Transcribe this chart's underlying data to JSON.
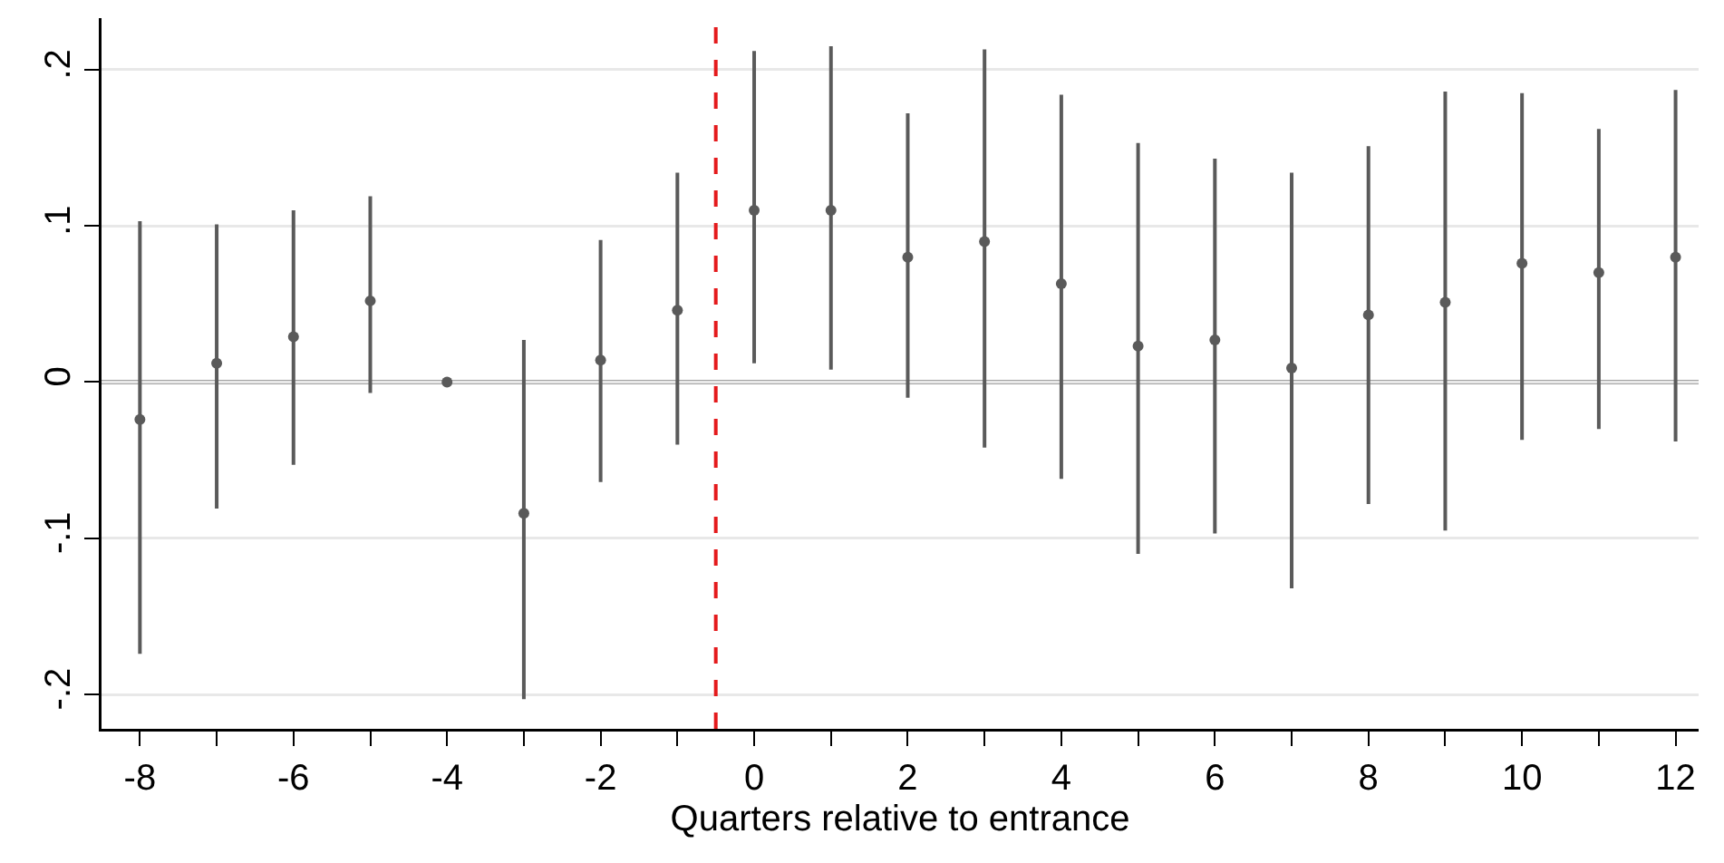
{
  "chart_data": {
    "type": "scatter",
    "xlabel": "Quarters relative to entrance",
    "x": [
      -8,
      -7,
      -6,
      -5,
      -4,
      -3,
      -2,
      -1,
      0,
      1,
      2,
      3,
      4,
      5,
      6,
      7,
      8,
      9,
      10,
      11,
      12
    ],
    "values": [
      -0.024,
      0.012,
      0.029,
      0.052,
      0,
      -0.084,
      0.014,
      0.046,
      0.11,
      0.11,
      0.08,
      0.09,
      0.063,
      0.023,
      0.027,
      0.009,
      0.043,
      0.051,
      0.076,
      0.07,
      0.08
    ],
    "errors": [
      [
        -0.174,
        0.103
      ],
      [
        -0.081,
        0.101
      ],
      [
        -0.053,
        0.11
      ],
      [
        -0.007,
        0.119
      ],
      null,
      [
        -0.203,
        0.027
      ],
      [
        -0.064,
        0.091
      ],
      [
        -0.04,
        0.134
      ],
      [
        0.012,
        0.212
      ],
      [
        0.008,
        0.215
      ],
      [
        -0.01,
        0.172
      ],
      [
        -0.042,
        0.213
      ],
      [
        -0.062,
        0.184
      ],
      [
        -0.11,
        0.153
      ],
      [
        -0.097,
        0.143
      ],
      [
        -0.132,
        0.134
      ],
      [
        -0.078,
        0.151
      ],
      [
        -0.095,
        0.186
      ],
      [
        -0.037,
        0.185
      ],
      [
        -0.03,
        0.162
      ],
      [
        -0.038,
        0.187
      ]
    ],
    "color": "#5a5a5a",
    "marker": "circle",
    "xlim": [
      -8.5,
      12.3
    ],
    "xticks": [
      -8,
      -6,
      -4,
      -2,
      0,
      2,
      4,
      6,
      8,
      10,
      12
    ],
    "ylim": [
      -0.222,
      0.233
    ],
    "yticks": [
      {
        "value": -0.2,
        "label": "-.2"
      },
      {
        "value": -0.1,
        "label": "-.1"
      },
      0,
      {
        "value": 0.1,
        "label": ".1"
      },
      {
        "value": 0.2,
        "label": ".2"
      }
    ],
    "grid": "y",
    "ref_lines": [
      {
        "axis": "y",
        "value": 0,
        "color": "#444444",
        "line_style": "solid"
      },
      {
        "axis": "x",
        "value": -0.5,
        "color": "#e41a1c",
        "line_style": "dashed"
      }
    ]
  }
}
